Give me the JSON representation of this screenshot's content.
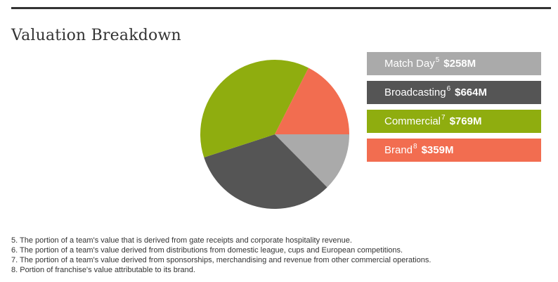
{
  "title": "Valuation Breakdown",
  "chart_data": {
    "type": "pie",
    "title": "Valuation Breakdown",
    "unit": "$M",
    "slices": [
      {
        "label": "Match Day",
        "footnote": "5",
        "value": 258,
        "display": "$258M",
        "color": "#aaaaaa"
      },
      {
        "label": "Broadcasting",
        "footnote": "6",
        "value": 664,
        "display": "$664M",
        "color": "#555555"
      },
      {
        "label": "Commercial",
        "footnote": "7",
        "value": 769,
        "display": "$769M",
        "color": "#8fad0f"
      },
      {
        "label": "Brand",
        "footnote": "8",
        "value": 359,
        "display": "$359M",
        "color": "#f26d50"
      }
    ],
    "legend_placement": "right"
  },
  "footnotes": [
    "5. The portion of a team's value that is derived from gate receipts and corporate hospitality revenue.",
    "6. The portion of a team's value derived from distributions from domestic league, cups and European competitions.",
    "7. The portion of a team's value derived from sponsorships, merchandising and revenue from other commercial operations.",
    "8. Portion of franchise's value attributable to its brand."
  ]
}
